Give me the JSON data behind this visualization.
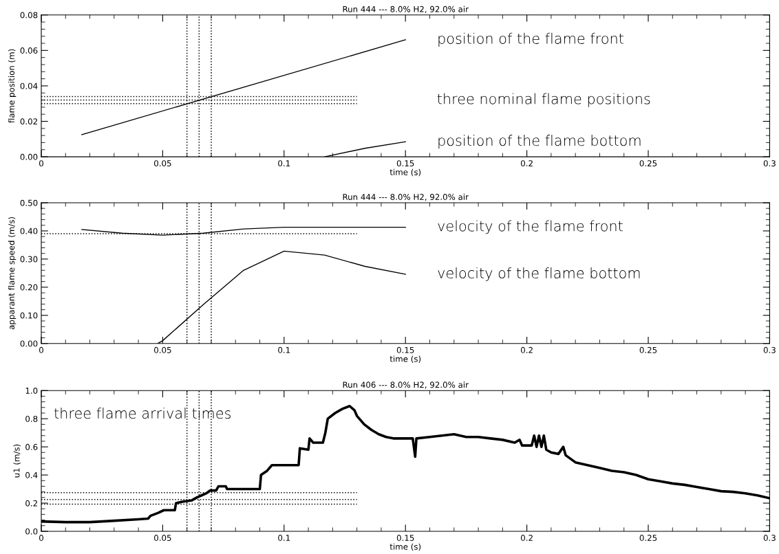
{
  "chart_data": [
    {
      "type": "line",
      "title": "Run 444 --- 8.0% H2, 92.0% air",
      "xlabel": "time (s)",
      "ylabel": "flame position (m)",
      "xlim": [
        0,
        0.3
      ],
      "xticks": [
        0,
        0.05,
        0.1,
        0.15,
        0.2,
        0.25,
        0.3
      ],
      "ylim": [
        0,
        0.08
      ],
      "yticks": [
        {
          "value": 0,
          "label": "0.00"
        },
        {
          "value": 0.02,
          "label": "0.02"
        },
        {
          "value": 0.04,
          "label": "0.04"
        },
        {
          "value": 0.06,
          "label": "0.06"
        },
        {
          "value": 0.08,
          "label": "0.08"
        }
      ],
      "series": [
        {
          "name": "position of the flame front",
          "color": "#000000",
          "x": [
            0.0167,
            0.15
          ],
          "values": [
            0.0125,
            0.066
          ]
        },
        {
          "name": "position of the flame bottom",
          "color": "#000000",
          "x": [
            0.1167,
            0.1333,
            0.15
          ],
          "values": [
            0,
            0.0048,
            0.0085
          ]
        },
        {
          "color": "#000000",
          "line_style": "dotted",
          "x": [
            0,
            0.13
          ],
          "values": [
            0.03,
            0.03
          ]
        },
        {
          "color": "#000000",
          "line_style": "dotted",
          "x": [
            0,
            0.13
          ],
          "values": [
            0.032,
            0.032
          ]
        },
        {
          "color": "#000000",
          "line_style": "dotted",
          "x": [
            0,
            0.13
          ],
          "values": [
            0.034,
            0.034
          ]
        }
      ],
      "ref_lines": [
        {
          "axis": "x",
          "value": 0.06,
          "line_style": "dotted",
          "color": "#000000"
        },
        {
          "axis": "x",
          "value": 0.065,
          "line_style": "dotted",
          "color": "#000000"
        },
        {
          "axis": "x",
          "value": 0.07,
          "line_style": "dotted",
          "color": "#000000"
        }
      ],
      "annotations": [
        "three nominal flame positions"
      ]
    },
    {
      "type": "line",
      "title": "Run 444 --- 8.0% H2, 92.0% air",
      "xlabel": "time (s)",
      "ylabel": "apparant flame speed (m/s)",
      "xlim": [
        0,
        0.3
      ],
      "xticks": [
        0,
        0.05,
        0.1,
        0.15,
        0.2,
        0.25,
        0.3
      ],
      "ylim": [
        0,
        0.5
      ],
      "yticks": [
        {
          "value": 0,
          "label": "0.00"
        },
        {
          "value": 0.1,
          "label": "0.10"
        },
        {
          "value": 0.2,
          "label": "0.20"
        },
        {
          "value": 0.3,
          "label": "0.30"
        },
        {
          "value": 0.4,
          "label": "0.40"
        },
        {
          "value": 0.5,
          "label": "0.50"
        }
      ],
      "series": [
        {
          "name": "velocity of the flame front",
          "color": "#000000",
          "x": [
            0.0167,
            0.0333,
            0.05,
            0.0667,
            0.0833,
            0.1,
            0.1167,
            0.1333,
            0.15
          ],
          "values": [
            0.405,
            0.392,
            0.385,
            0.392,
            0.407,
            0.413,
            0.413,
            0.413,
            0.413
          ]
        },
        {
          "name": "velocity of the flame bottom",
          "color": "#000000",
          "x": [
            0.048,
            0.05,
            0.0667,
            0.0833,
            0.1,
            0.1167,
            0.1333,
            0.15
          ],
          "values": [
            0,
            0.01,
            0.138,
            0.26,
            0.328,
            0.314,
            0.274,
            0.246
          ]
        },
        {
          "color": "#000000",
          "line_style": "dotted",
          "x": [
            0,
            0.13
          ],
          "values": [
            0.39,
            0.39
          ]
        }
      ],
      "ref_lines": [
        {
          "axis": "x",
          "value": 0.06,
          "line_style": "dotted",
          "color": "#000000"
        },
        {
          "axis": "x",
          "value": 0.065,
          "line_style": "dotted",
          "color": "#000000"
        },
        {
          "axis": "x",
          "value": 0.07,
          "line_style": "dotted",
          "color": "#000000"
        }
      ]
    },
    {
      "type": "line",
      "title": "Run 406 --- 8.0% H2, 92.0% air",
      "xlabel": "time (s)",
      "ylabel": "u1 (m/s)",
      "xlim": [
        0,
        0.3
      ],
      "xticks": [
        0,
        0.05,
        0.1,
        0.15,
        0.2,
        0.25,
        0.3
      ],
      "ylim": [
        0,
        1.0
      ],
      "yticks": [
        {
          "value": 0,
          "label": "0.0"
        },
        {
          "value": 0.2,
          "label": "0.2"
        },
        {
          "value": 0.4,
          "label": "0.4"
        },
        {
          "value": 0.6,
          "label": "0.6"
        },
        {
          "value": 0.8,
          "label": "0.8"
        },
        {
          "value": 1.0,
          "label": "1.0"
        }
      ],
      "series": [
        {
          "color": "#000000",
          "x": [
            0,
            0.01,
            0.02,
            0.03,
            0.04,
            0.044,
            0.045,
            0.048,
            0.0505,
            0.055,
            0.0555,
            0.058,
            0.06,
            0.062,
            0.064,
            0.066,
            0.068,
            0.0695,
            0.072,
            0.073,
            0.076,
            0.0765,
            0.09,
            0.0905,
            0.093,
            0.095,
            0.106,
            0.1065,
            0.11,
            0.1105,
            0.112,
            0.116,
            0.117,
            0.118,
            0.121,
            0.124,
            0.127,
            0.129,
            0.13,
            0.133,
            0.136,
            0.139,
            0.142,
            0.145,
            0.15,
            0.153,
            0.154,
            0.1545,
            0.16,
            0.165,
            0.17,
            0.175,
            0.18,
            0.185,
            0.19,
            0.195,
            0.197,
            0.198,
            0.2,
            0.202,
            0.203,
            0.204,
            0.205,
            0.206,
            0.207,
            0.208,
            0.21,
            0.213,
            0.215,
            0.216,
            0.22,
            0.225,
            0.23,
            0.235,
            0.24,
            0.245,
            0.25,
            0.255,
            0.26,
            0.265,
            0.27,
            0.275,
            0.28,
            0.285,
            0.29,
            0.295,
            0.3
          ],
          "values": [
            0.07,
            0.065,
            0.065,
            0.075,
            0.085,
            0.09,
            0.11,
            0.13,
            0.15,
            0.15,
            0.2,
            0.21,
            0.215,
            0.22,
            0.24,
            0.255,
            0.27,
            0.29,
            0.29,
            0.32,
            0.32,
            0.3,
            0.3,
            0.4,
            0.43,
            0.47,
            0.47,
            0.59,
            0.58,
            0.66,
            0.63,
            0.63,
            0.7,
            0.8,
            0.84,
            0.87,
            0.89,
            0.86,
            0.82,
            0.76,
            0.72,
            0.69,
            0.67,
            0.66,
            0.66,
            0.66,
            0.53,
            0.66,
            0.67,
            0.68,
            0.69,
            0.67,
            0.67,
            0.66,
            0.65,
            0.63,
            0.65,
            0.61,
            0.61,
            0.61,
            0.68,
            0.6,
            0.68,
            0.6,
            0.68,
            0.58,
            0.56,
            0.55,
            0.6,
            0.54,
            0.49,
            0.47,
            0.45,
            0.43,
            0.42,
            0.4,
            0.37,
            0.355,
            0.34,
            0.33,
            0.315,
            0.3,
            0.285,
            0.28,
            0.27,
            0.255,
            0.235
          ]
        },
        {
          "color": "#000000",
          "line_style": "dotted",
          "x": [
            0,
            0.13
          ],
          "values": [
            0.193,
            0.193
          ]
        },
        {
          "color": "#000000",
          "line_style": "dotted",
          "x": [
            0,
            0.13
          ],
          "values": [
            0.226,
            0.226
          ]
        },
        {
          "color": "#000000",
          "line_style": "dotted",
          "x": [
            0,
            0.13
          ],
          "values": [
            0.275,
            0.275
          ]
        }
      ],
      "ref_lines": [
        {
          "axis": "x",
          "value": 0.06,
          "line_style": "dotted",
          "color": "#000000"
        },
        {
          "axis": "x",
          "value": 0.065,
          "line_style": "dotted",
          "color": "#000000"
        },
        {
          "axis": "x",
          "value": 0.07,
          "line_style": "dotted",
          "color": "#000000"
        }
      ],
      "annotations": [
        "three flame arrival times"
      ]
    }
  ]
}
